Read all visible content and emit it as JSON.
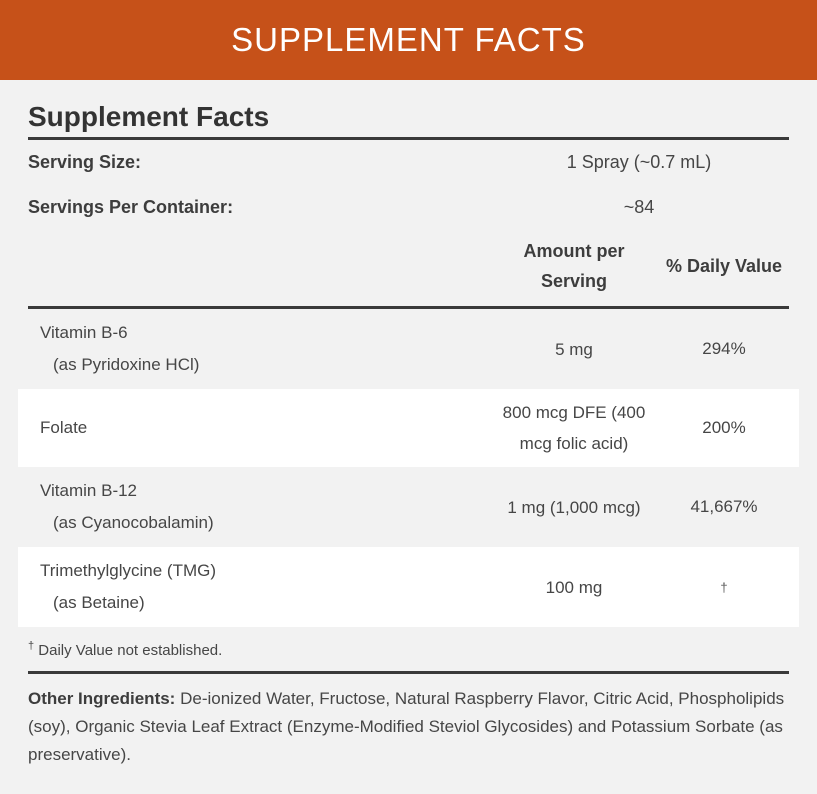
{
  "banner": {
    "title": "SUPPLEMENT FACTS"
  },
  "panel": {
    "heading": "Supplement Facts",
    "serving_size": {
      "label": "Serving Size:",
      "value": "1 Spray (~0.7 mL)"
    },
    "servings_per_container": {
      "label": "Servings Per Container:",
      "value": "~84"
    },
    "columns": {
      "amount": "Amount per Serving",
      "daily_value": "% Daily Value"
    },
    "nutrients": [
      {
        "name": "Vitamin B-6",
        "sub": "(as Pyridoxine HCl)",
        "amount": "5 mg",
        "dv": "294%"
      },
      {
        "name": "Folate",
        "sub": "",
        "amount": "800 mcg DFE (400 mcg folic acid)",
        "dv": "200%"
      },
      {
        "name": "Vitamin B-12",
        "sub": "(as Cyanocobalamin)",
        "amount": "1 mg (1,000 mcg)",
        "dv": "41,667%"
      },
      {
        "name": "Trimethylglycine (TMG)",
        "sub": "(as Betaine)",
        "amount": "100 mg",
        "dv": "†"
      }
    ],
    "footnote": {
      "symbol": "†",
      "text": "Daily Value not established."
    },
    "other_ingredients": {
      "label": "Other Ingredients:",
      "text": "De-ionized Water, Fructose, Natural Raspberry Flavor, Citric Acid, Phospholipids (soy), Organic Stevia Leaf Extract (Enzyme-Modified Steviol Glycosides) and Potassium Sorbate (as preservative)."
    }
  },
  "colors": {
    "banner_bg": "#c65119",
    "banner_text": "#ffffff",
    "page_bg": "#f2f2f2",
    "stripe_bg": "#ffffff",
    "divider": "#3a3a3a",
    "text": "#464646"
  }
}
